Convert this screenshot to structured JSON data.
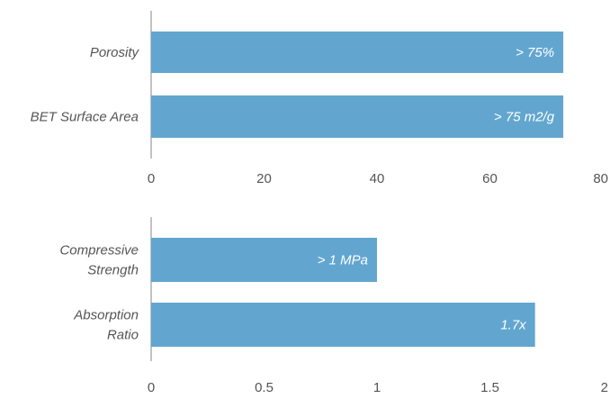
{
  "chart_data": [
    {
      "type": "bar",
      "orientation": "horizontal",
      "categories": [
        [
          "Porosity"
        ],
        [
          "BET Surface Area"
        ]
      ],
      "values": [
        73,
        73
      ],
      "data_labels": [
        "> 75%",
        "> 75 m2/g"
      ],
      "xlim": [
        0,
        80
      ],
      "xticks": [
        "0",
        "20",
        "40",
        "60",
        "80"
      ],
      "grid": false,
      "bar_color": "#62a6d0"
    },
    {
      "type": "bar",
      "orientation": "horizontal",
      "categories": [
        [
          "Compressive",
          "Strength"
        ],
        [
          "Absorption",
          "Ratio"
        ]
      ],
      "values": [
        1.0,
        1.7
      ],
      "data_labels": [
        "> 1 MPa",
        "1.7x"
      ],
      "xlim": [
        0,
        2
      ],
      "xticks": [
        "0",
        "0.5",
        "1",
        "1.5",
        "2"
      ],
      "grid": false,
      "bar_color": "#62a6d0"
    }
  ]
}
